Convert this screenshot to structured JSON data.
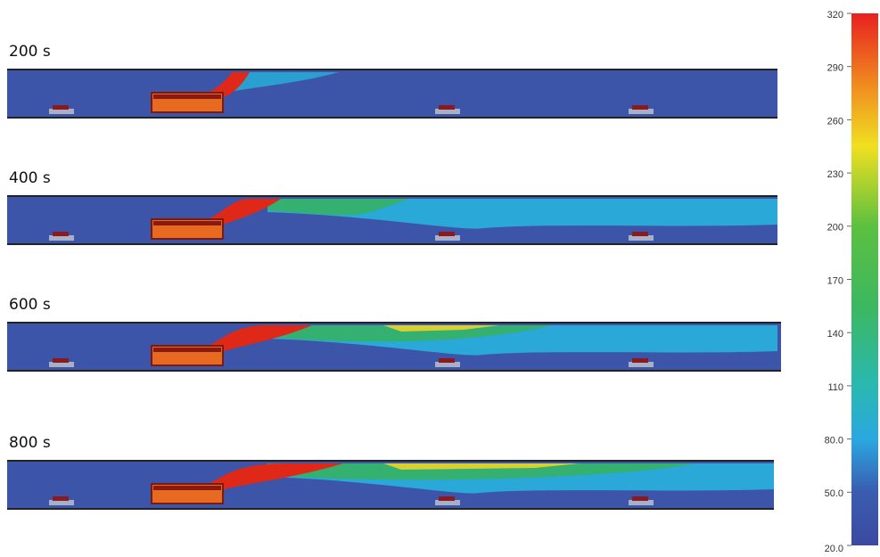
{
  "panels": [
    {
      "label": "200 s"
    },
    {
      "label": "400 s"
    },
    {
      "label": "600 s"
    },
    {
      "label": "800 s"
    }
  ],
  "colorbar": {
    "lim": [
      20,
      320
    ],
    "ticks": [
      {
        "value": 20,
        "label": "20.0"
      },
      {
        "value": 50,
        "label": "50.0"
      },
      {
        "value": 80,
        "label": "80.0"
      },
      110,
      140,
      170,
      200,
      230,
      260,
      290,
      320
    ]
  }
}
